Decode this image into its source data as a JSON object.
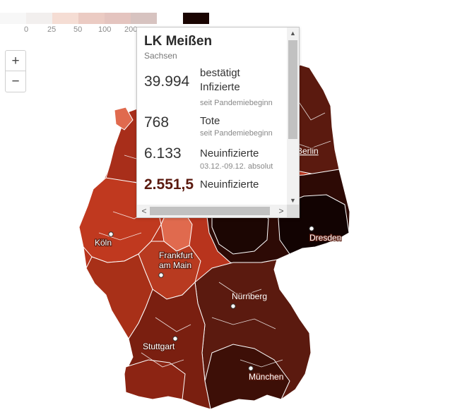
{
  "legend": {
    "colors": [
      "#f7f7f7",
      "#f2efee",
      "#f5ddd4",
      "#ebcbc3",
      "#e4c4bf",
      "#d7c3c0",
      "#1a0502"
    ],
    "labels": [
      "0",
      "25",
      "50",
      "100",
      "200"
    ]
  },
  "zoom": {
    "in_label": "+",
    "out_label": "−"
  },
  "map": {
    "cities": [
      {
        "name": "Berlin"
      },
      {
        "name": "Dresden"
      },
      {
        "name": "Köln"
      },
      {
        "name": "Frankfurt"
      },
      {
        "name": "am Main"
      },
      {
        "name": "Nürnberg"
      },
      {
        "name": "Stuttgart"
      },
      {
        "name": "München"
      }
    ],
    "colors": {
      "lightest": "#f0a28a",
      "light": "#e06a4e",
      "medium": "#b8341d",
      "dark": "#8c2413",
      "darker": "#5b1a0f",
      "darkest": "#2d0a05",
      "black": "#120302",
      "border": "#ffffff"
    }
  },
  "tooltip": {
    "title": "LK Meißen",
    "subtitle": "Sachsen",
    "rows": [
      {
        "value": "39.994",
        "label_line1": "bestätigt",
        "label_line2": "Infizierte",
        "sub": "seit Pandemiebeginn"
      },
      {
        "value": "768",
        "label_line1": "Tote",
        "sub": "seit Pandemiebeginn"
      },
      {
        "value": "6.133",
        "label_line1": "Neuinfizierte",
        "sub": "03.12.-09.12. absolut"
      },
      {
        "value": "2.551,5",
        "label_line1": "Neuinfizierte"
      }
    ],
    "scroll": {
      "left": "<",
      "right": ">",
      "up": "▲",
      "down": "▼"
    }
  }
}
